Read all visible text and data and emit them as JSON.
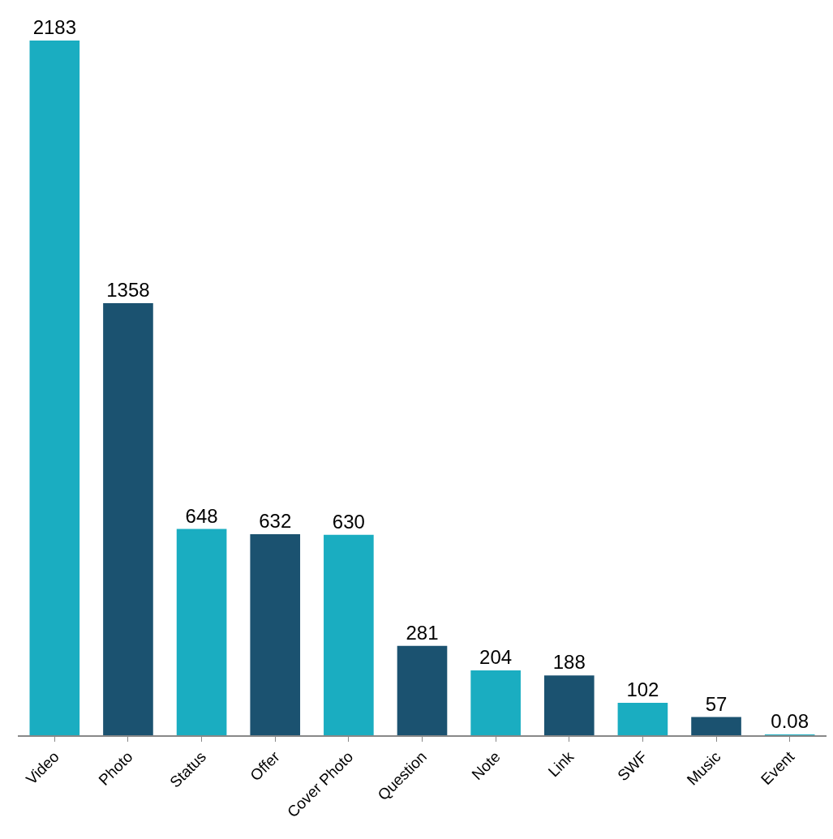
{
  "chart_data": {
    "type": "bar",
    "categories": [
      "Video",
      "Photo",
      "Status",
      "Offer",
      "Cover Photo",
      "Question",
      "Note",
      "Link",
      "SWF",
      "Music",
      "Event"
    ],
    "values": [
      2183,
      1358,
      648,
      632,
      630,
      281,
      204,
      188,
      102,
      57,
      0.08
    ],
    "colors": [
      "#1aadc1",
      "#1b5270",
      "#1aadc1",
      "#1b5270",
      "#1aadc1",
      "#1b5270",
      "#1aadc1",
      "#1b5270",
      "#1aadc1",
      "#1b5270",
      "#1aadc1"
    ],
    "data_labels": true
  }
}
